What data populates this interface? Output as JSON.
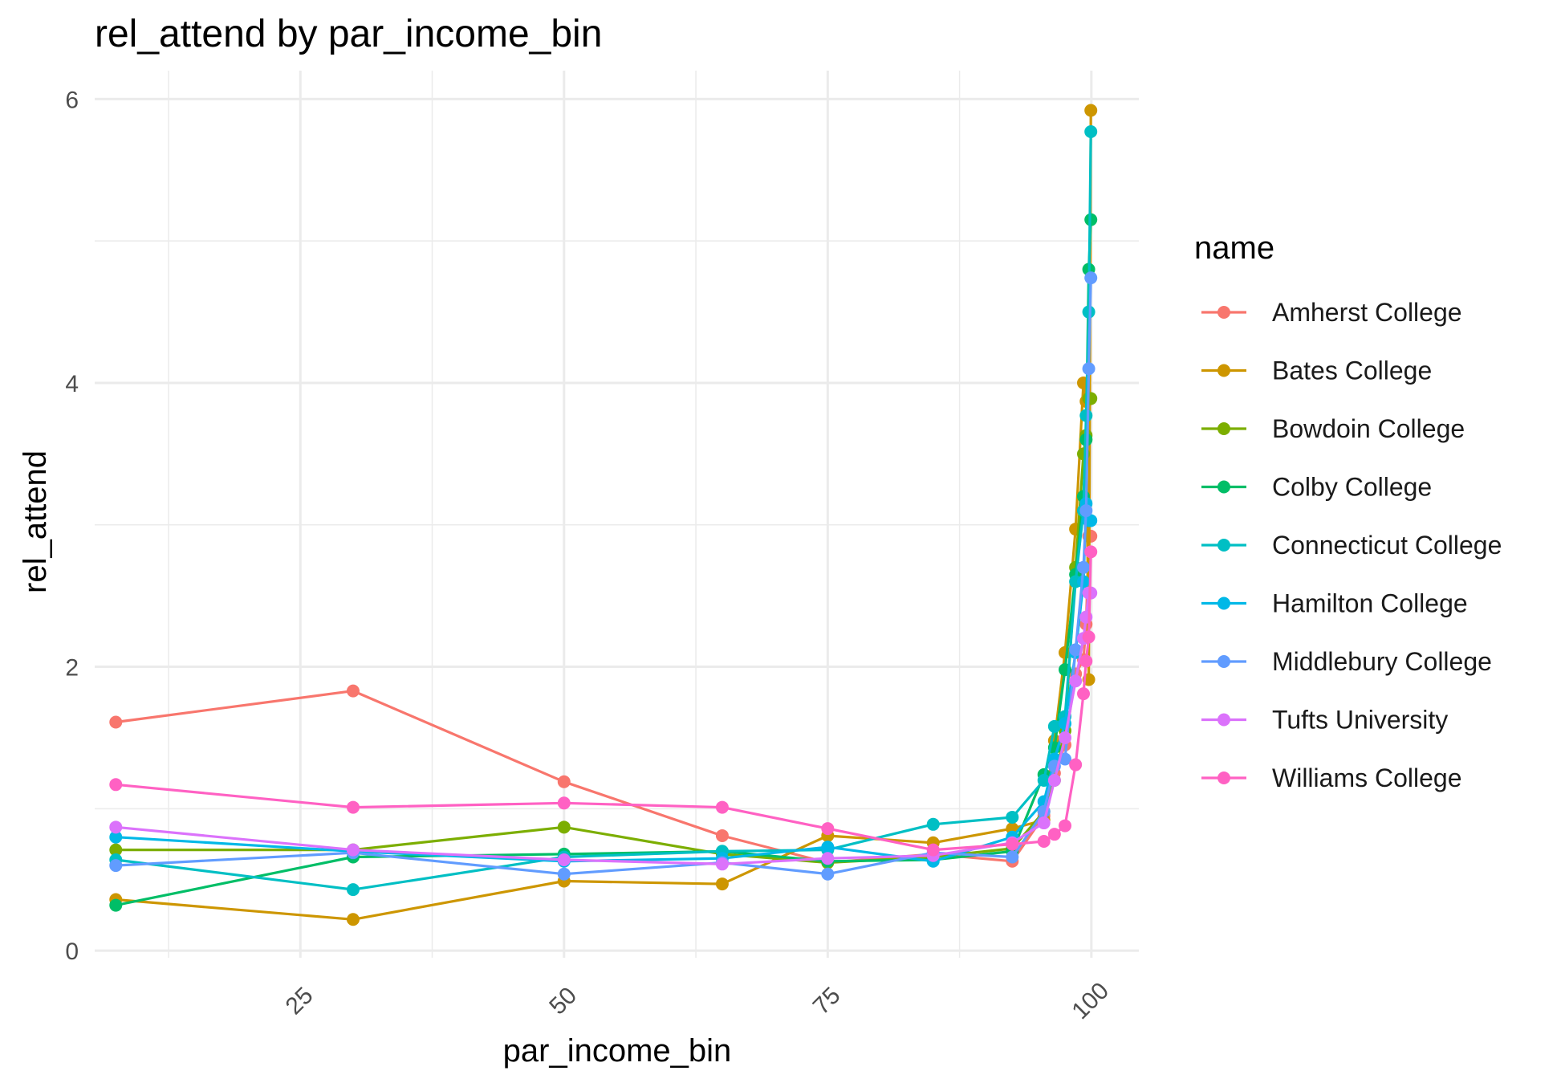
{
  "chart_data": {
    "type": "line",
    "title": "rel_attend by par_income_bin",
    "xlabel": "par_income_bin",
    "ylabel": "rel_attend",
    "xlim": [
      5.5,
      104.5
    ],
    "ylim": [
      -0.05,
      6.2
    ],
    "x_ticks": [
      25,
      50,
      75,
      100
    ],
    "x_tick_labels": [
      "25",
      "50",
      "75",
      "100"
    ],
    "y_ticks": [
      0,
      2,
      4,
      6
    ],
    "y_tick_labels": [
      "0",
      "2",
      "4",
      "6"
    ],
    "grid": true,
    "legend": {
      "title": "name",
      "position": "right"
    },
    "x": [
      7.5,
      30,
      50,
      65,
      75,
      85,
      92.5,
      95.5,
      96.5,
      97.5,
      98.5,
      99.25,
      99.5,
      99.75,
      99.95
    ],
    "series": [
      {
        "name": "Amherst College",
        "color": "#F8766D",
        "values": [
          1.61,
          1.83,
          1.19,
          0.81,
          0.62,
          0.68,
          0.63,
          0.95,
          1.25,
          1.45,
          1.95,
          2.05,
          2.3,
          2.92,
          2.92
        ]
      },
      {
        "name": "Bates College",
        "color": "#CD9600",
        "values": [
          0.36,
          0.22,
          0.49,
          0.47,
          0.81,
          0.76,
          0.86,
          0.92,
          1.48,
          2.1,
          2.97,
          4.0,
          3.87,
          1.91,
          5.92
        ]
      },
      {
        "name": "Bowdoin College",
        "color": "#7CAE00",
        "values": [
          0.71,
          0.71,
          0.87,
          0.68,
          0.62,
          0.66,
          0.72,
          0.98,
          1.2,
          1.55,
          2.7,
          3.5,
          3.63,
          3.89,
          3.89
        ]
      },
      {
        "name": "Colby College",
        "color": "#00BE67",
        "values": [
          0.32,
          0.66,
          0.68,
          0.7,
          0.63,
          0.64,
          0.7,
          1.24,
          1.43,
          1.98,
          2.65,
          3.2,
          3.6,
          4.8,
          5.15
        ]
      },
      {
        "name": "Connecticut College",
        "color": "#00BFC4",
        "values": [
          0.64,
          0.43,
          0.66,
          0.7,
          0.71,
          0.89,
          0.94,
          1.2,
          1.58,
          1.65,
          2.6,
          3.1,
          3.77,
          4.5,
          5.77
        ]
      },
      {
        "name": "Hamilton College",
        "color": "#00B8E7",
        "values": [
          0.8,
          0.7,
          0.63,
          0.65,
          0.73,
          0.63,
          0.8,
          1.05,
          1.35,
          1.6,
          2.1,
          2.6,
          3.15,
          3.03,
          3.03
        ]
      },
      {
        "name": "Middlebury College",
        "color": "#619CFF",
        "values": [
          0.6,
          0.69,
          0.54,
          0.62,
          0.54,
          0.69,
          0.66,
          0.98,
          1.3,
          1.35,
          2.12,
          2.7,
          3.1,
          4.1,
          4.74
        ]
      },
      {
        "name": "Tufts University",
        "color": "#DB72FB",
        "values": [
          0.87,
          0.71,
          0.64,
          0.61,
          0.65,
          0.67,
          0.76,
          0.9,
          1.2,
          1.5,
          1.9,
          2.2,
          2.35,
          2.52,
          2.52
        ]
      },
      {
        "name": "Williams College",
        "color": "#FF61C3",
        "values": [
          1.17,
          1.01,
          1.04,
          1.01,
          0.86,
          0.71,
          0.75,
          0.77,
          0.82,
          0.88,
          1.31,
          1.81,
          2.04,
          2.21,
          2.81
        ]
      }
    ]
  }
}
